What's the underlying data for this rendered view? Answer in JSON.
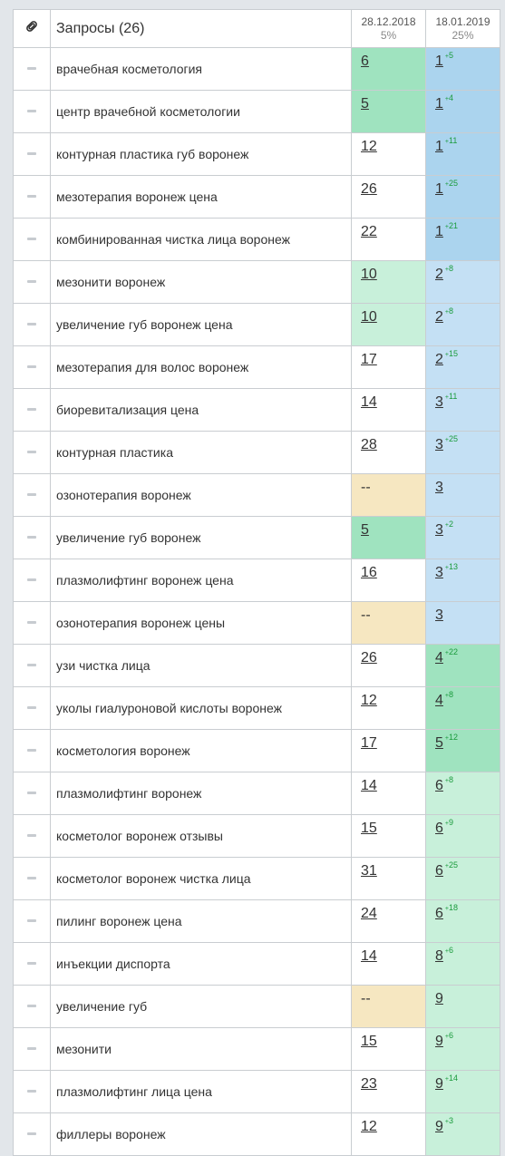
{
  "header": {
    "title": "Запросы (26)",
    "dates": [
      {
        "date": "28.12.2018",
        "percent": "5%"
      },
      {
        "date": "18.01.2019",
        "percent": "25%"
      }
    ]
  },
  "colors": {
    "top1": "#abd4ee",
    "top3": "#c4e0f4",
    "top5": "#9fe3bf",
    "top10": "#c8f0da",
    "absent": "#f6e7c1",
    "rise": "#1a9b3c"
  },
  "rows": [
    {
      "query": "врачебная косметология",
      "p1": "6",
      "p1_bg": "green",
      "p2": "1",
      "delta": "5",
      "p2_bg": "blue"
    },
    {
      "query": "центр врачебной косметологии",
      "p1": "5",
      "p1_bg": "green",
      "p2": "1",
      "delta": "4",
      "p2_bg": "blue"
    },
    {
      "query": "контурная пластика губ воронеж",
      "p1": "12",
      "p1_bg": "white",
      "p2": "1",
      "delta": "11",
      "p2_bg": "blue"
    },
    {
      "query": "мезотерапия воронеж цена",
      "p1": "26",
      "p1_bg": "white",
      "p2": "1",
      "delta": "25",
      "p2_bg": "blue"
    },
    {
      "query": "комбинированная чистка лица воронеж",
      "p1": "22",
      "p1_bg": "white",
      "p2": "1",
      "delta": "21",
      "p2_bg": "blue"
    },
    {
      "query": "мезонити воронеж",
      "p1": "10",
      "p1_bg": "lgreen",
      "p2": "2",
      "delta": "8",
      "p2_bg": "lblue"
    },
    {
      "query": "увеличение губ воронеж цена",
      "p1": "10",
      "p1_bg": "lgreen",
      "p2": "2",
      "delta": "8",
      "p2_bg": "lblue"
    },
    {
      "query": "мезотерапия для волос воронеж",
      "p1": "17",
      "p1_bg": "white",
      "p2": "2",
      "delta": "15",
      "p2_bg": "lblue"
    },
    {
      "query": "биоревитализация цена",
      "p1": "14",
      "p1_bg": "white",
      "p2": "3",
      "delta": "11",
      "p2_bg": "lblue"
    },
    {
      "query": "контурная пластика",
      "p1": "28",
      "p1_bg": "white",
      "p2": "3",
      "delta": "25",
      "p2_bg": "lblue"
    },
    {
      "query": "озонотерапия воронеж",
      "p1": "--",
      "p1_bg": "yellow",
      "p2": "3",
      "delta": "",
      "p2_bg": "lblue"
    },
    {
      "query": "увеличение губ воронеж",
      "p1": "5",
      "p1_bg": "green",
      "p2": "3",
      "delta": "2",
      "p2_bg": "lblue"
    },
    {
      "query": "плазмолифтинг воронеж цена",
      "p1": "16",
      "p1_bg": "white",
      "p2": "3",
      "delta": "13",
      "p2_bg": "lblue"
    },
    {
      "query": "озонотерапия воронеж цены",
      "p1": "--",
      "p1_bg": "yellow",
      "p2": "3",
      "delta": "",
      "p2_bg": "lblue"
    },
    {
      "query": "узи чистка лица",
      "p1": "26",
      "p1_bg": "white",
      "p2": "4",
      "delta": "22",
      "p2_bg": "green"
    },
    {
      "query": "уколы гиалуроновой кислоты воронеж",
      "p1": "12",
      "p1_bg": "white",
      "p2": "4",
      "delta": "8",
      "p2_bg": "green"
    },
    {
      "query": "косметология воронеж",
      "p1": "17",
      "p1_bg": "white",
      "p2": "5",
      "delta": "12",
      "p2_bg": "green"
    },
    {
      "query": "плазмолифтинг воронеж",
      "p1": "14",
      "p1_bg": "white",
      "p2": "6",
      "delta": "8",
      "p2_bg": "lgreen"
    },
    {
      "query": "косметолог воронеж отзывы",
      "p1": "15",
      "p1_bg": "white",
      "p2": "6",
      "delta": "9",
      "p2_bg": "lgreen"
    },
    {
      "query": "косметолог воронеж чистка лица",
      "p1": "31",
      "p1_bg": "white",
      "p2": "6",
      "delta": "25",
      "p2_bg": "lgreen"
    },
    {
      "query": "пилинг воронеж цена",
      "p1": "24",
      "p1_bg": "white",
      "p2": "6",
      "delta": "18",
      "p2_bg": "lgreen"
    },
    {
      "query": "инъекции диспорта",
      "p1": "14",
      "p1_bg": "white",
      "p2": "8",
      "delta": "6",
      "p2_bg": "lgreen"
    },
    {
      "query": "увеличение губ",
      "p1": "--",
      "p1_bg": "yellow",
      "p2": "9",
      "delta": "",
      "p2_bg": "lgreen"
    },
    {
      "query": "мезонити",
      "p1": "15",
      "p1_bg": "white",
      "p2": "9",
      "delta": "6",
      "p2_bg": "lgreen"
    },
    {
      "query": "плазмолифтинг лица цена",
      "p1": "23",
      "p1_bg": "white",
      "p2": "9",
      "delta": "14",
      "p2_bg": "lgreen"
    },
    {
      "query": "филлеры воронеж",
      "p1": "12",
      "p1_bg": "white",
      "p2": "9",
      "delta": "3",
      "p2_bg": "lgreen"
    }
  ]
}
